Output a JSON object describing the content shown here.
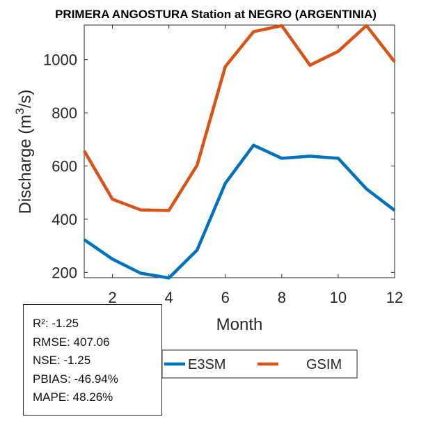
{
  "chart_data": {
    "type": "line",
    "title": "PRIMERA ANGOSTURA  Station at  NEGRO (ARGENTINIA)",
    "xlabel": "Month",
    "ylabel": "Discharge (m³/s)",
    "ylabel_main": "Discharge (m",
    "ylabel_sup": "3",
    "ylabel_tail": "/s)",
    "x": [
      1,
      2,
      3,
      4,
      5,
      6,
      7,
      8,
      9,
      10,
      11,
      12
    ],
    "xlim": [
      1,
      12
    ],
    "ylim": [
      180,
      1130
    ],
    "xticks": [
      2,
      4,
      6,
      8,
      10,
      12
    ],
    "yticks": [
      200,
      400,
      600,
      800,
      1000
    ],
    "grid": false,
    "legend_position": "bottom",
    "series": [
      {
        "name": "E3SM",
        "color": "#0072BD",
        "values": [
          323,
          250,
          197,
          179,
          284,
          535,
          678,
          629,
          637,
          629,
          514,
          433
        ]
      },
      {
        "name": "GSIM",
        "color": "#D95319",
        "values": [
          657,
          475,
          435,
          433,
          603,
          974,
          1105,
          1128,
          979,
          1031,
          1128,
          992
        ]
      }
    ],
    "stats": [
      "R²: -1.25",
      "RMSE: 407.06",
      "NSE: -1.25",
      "PBIAS: -46.94%",
      "MAPE: 48.26%"
    ]
  }
}
